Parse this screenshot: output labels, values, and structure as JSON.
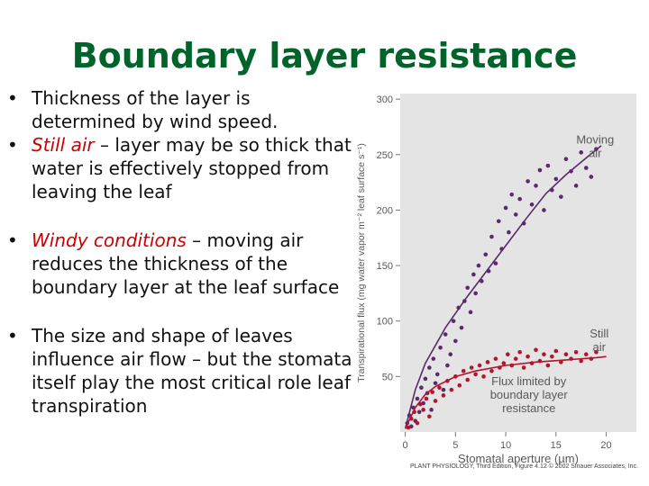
{
  "slide": {
    "title": "Boundary layer resistance",
    "bullets": [
      {
        "bullet": "•",
        "parts": [
          {
            "text": "Thickness of the layer is determined by wind speed.",
            "hl": false
          }
        ]
      },
      {
        "bullet": "•",
        "parts": [
          {
            "text": "Still air",
            "hl": true
          },
          {
            "text": " – layer may be so thick that water is effectively stopped from leaving the leaf",
            "hl": false
          }
        ]
      },
      {
        "bullet": "•",
        "parts": [
          {
            "text": "Windy conditions",
            "hl": true
          },
          {
            "text": " – moving air reduces the thickness of the boundary layer at the leaf surface",
            "hl": false
          }
        ]
      },
      {
        "bullet": "•",
        "parts": [
          {
            "text": "The size and shape of leaves influence air flow – but the stomata itself play the most critical role leaf transpiration",
            "hl": false
          }
        ]
      }
    ],
    "caption": "PLANT PHYSIOLOGY, Third Edition, Figure 4.12  © 2002 Sinauer Associates, Inc.",
    "colors": {
      "title": "#00642a",
      "highlight": "#cc0000",
      "moving_air": "#5a2a6a",
      "still_air": "#b3142e",
      "chart_bg": "#e4e4e4"
    }
  },
  "chart_data": {
    "type": "scatter",
    "xlabel": "Stomatal aperture (µm)",
    "ylabel": "Transpirational flux (mg water vapor m⁻² leaf surface s⁻¹)",
    "xlim": [
      -0.5,
      23
    ],
    "ylim": [
      0,
      305
    ],
    "xticks": [
      0,
      5,
      10,
      15,
      20
    ],
    "yticks": [
      50,
      100,
      150,
      200,
      250,
      300
    ],
    "grid": false,
    "series": [
      {
        "name": "Moving air",
        "color": "#5a2a6a",
        "fit": [
          [
            0,
            3
          ],
          [
            1,
            38
          ],
          [
            2,
            62
          ],
          [
            4,
            94
          ],
          [
            6,
            120
          ],
          [
            8,
            144
          ],
          [
            10,
            168
          ],
          [
            12,
            192
          ],
          [
            14,
            215
          ],
          [
            16,
            232
          ],
          [
            18,
            247
          ],
          [
            19.5,
            258
          ]
        ],
        "points": [
          [
            0.2,
            8
          ],
          [
            0.4,
            15
          ],
          [
            0.6,
            5
          ],
          [
            0.8,
            22
          ],
          [
            1,
            10
          ],
          [
            1.2,
            30
          ],
          [
            1.4,
            18
          ],
          [
            1.6,
            40
          ],
          [
            1.8,
            26
          ],
          [
            2,
            48
          ],
          [
            2.2,
            35
          ],
          [
            2.4,
            58
          ],
          [
            2.6,
            20
          ],
          [
            2.8,
            66
          ],
          [
            3,
            44
          ],
          [
            3.2,
            52
          ],
          [
            3.5,
            76
          ],
          [
            3.8,
            38
          ],
          [
            4,
            88
          ],
          [
            4.2,
            60
          ],
          [
            4.5,
            70
          ],
          [
            4.8,
            100
          ],
          [
            5,
            82
          ],
          [
            5.3,
            112
          ],
          [
            5.6,
            94
          ],
          [
            5.9,
            118
          ],
          [
            6.2,
            130
          ],
          [
            6.5,
            108
          ],
          [
            6.8,
            142
          ],
          [
            7,
            125
          ],
          [
            7.3,
            150
          ],
          [
            7.6,
            136
          ],
          [
            8,
            160
          ],
          [
            8.3,
            145
          ],
          [
            8.6,
            176
          ],
          [
            9,
            152
          ],
          [
            9.3,
            190
          ],
          [
            9.6,
            165
          ],
          [
            10,
            202
          ],
          [
            10.3,
            180
          ],
          [
            10.6,
            214
          ],
          [
            11,
            196
          ],
          [
            11.4,
            210
          ],
          [
            11.8,
            188
          ],
          [
            12.2,
            226
          ],
          [
            12.6,
            205
          ],
          [
            13,
            222
          ],
          [
            13.4,
            236
          ],
          [
            13.8,
            200
          ],
          [
            14.2,
            240
          ],
          [
            14.6,
            218
          ],
          [
            15,
            228
          ],
          [
            15.5,
            212
          ],
          [
            16,
            246
          ],
          [
            16.5,
            235
          ],
          [
            17,
            222
          ],
          [
            17.5,
            252
          ],
          [
            18,
            238
          ],
          [
            18.5,
            230
          ],
          [
            19,
            255
          ]
        ]
      },
      {
        "name": "Still air",
        "color": "#b3142e",
        "fit": [
          [
            0,
            3
          ],
          [
            1,
            22
          ],
          [
            2,
            34
          ],
          [
            3,
            41
          ],
          [
            5,
            50
          ],
          [
            7,
            55
          ],
          [
            10,
            60
          ],
          [
            13,
            63
          ],
          [
            16,
            65
          ],
          [
            19,
            67
          ],
          [
            20,
            68
          ]
        ],
        "points": [
          [
            0.3,
            4
          ],
          [
            0.6,
            12
          ],
          [
            0.9,
            18
          ],
          [
            1.2,
            8
          ],
          [
            1.5,
            25
          ],
          [
            1.8,
            20
          ],
          [
            2.1,
            30
          ],
          [
            2.4,
            14
          ],
          [
            2.7,
            36
          ],
          [
            3,
            28
          ],
          [
            3.4,
            40
          ],
          [
            3.8,
            33
          ],
          [
            4.2,
            46
          ],
          [
            4.6,
            38
          ],
          [
            5,
            50
          ],
          [
            5.4,
            42
          ],
          [
            5.8,
            55
          ],
          [
            6.2,
            47
          ],
          [
            6.6,
            58
          ],
          [
            7,
            52
          ],
          [
            7.4,
            60
          ],
          [
            7.8,
            50
          ],
          [
            8.2,
            63
          ],
          [
            8.6,
            55
          ],
          [
            9,
            66
          ],
          [
            9.4,
            58
          ],
          [
            9.8,
            62
          ],
          [
            10.2,
            70
          ],
          [
            10.6,
            60
          ],
          [
            11,
            66
          ],
          [
            11.4,
            72
          ],
          [
            11.8,
            58
          ],
          [
            12.2,
            68
          ],
          [
            12.6,
            62
          ],
          [
            13,
            74
          ],
          [
            13.4,
            64
          ],
          [
            13.8,
            70
          ],
          [
            14.2,
            60
          ],
          [
            14.6,
            68
          ],
          [
            15,
            73
          ],
          [
            15.5,
            63
          ],
          [
            16,
            70
          ],
          [
            16.5,
            66
          ],
          [
            17,
            72
          ],
          [
            17.5,
            64
          ],
          [
            18,
            70
          ],
          [
            18.5,
            66
          ],
          [
            19,
            72
          ]
        ]
      }
    ],
    "annotations": [
      {
        "text": [
          "Moving",
          "air"
        ],
        "x": 18.9,
        "y": 260
      },
      {
        "text": [
          "Still",
          "air"
        ],
        "x": 19.3,
        "y": 85
      },
      {
        "text": [
          "Flux limited by",
          "boundary layer",
          "resistance"
        ],
        "x": 12.3,
        "y": 42
      }
    ]
  }
}
